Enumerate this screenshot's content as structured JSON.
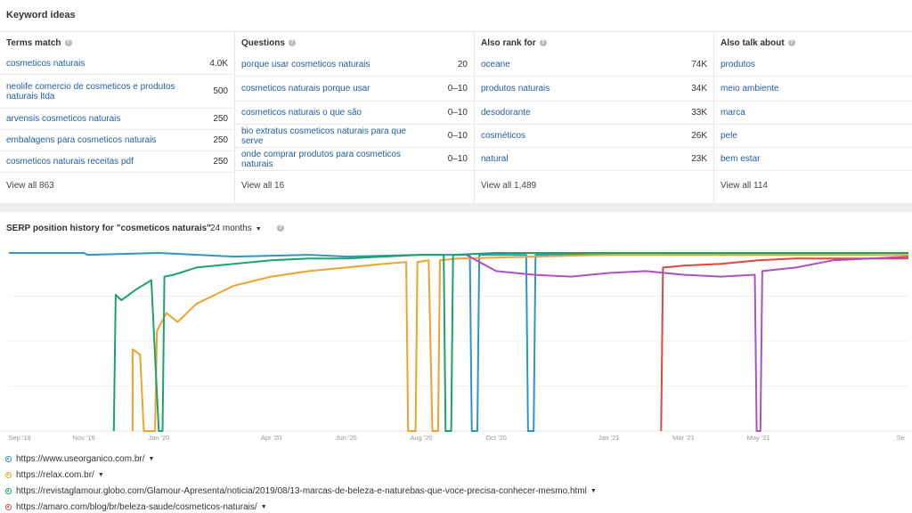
{
  "keyword_ideas": {
    "title": "Keyword ideas",
    "columns": [
      {
        "header": "Terms match",
        "rows": [
          {
            "keyword": "cosmeticos naturais",
            "value": "4.0K"
          },
          {
            "keyword": "neolife comercio de cosmeticos e produtos naturais ltda",
            "value": "500"
          },
          {
            "keyword": "arvensis cosmeticos naturais",
            "value": "250"
          },
          {
            "keyword": "embalagens para cosmeticos naturais",
            "value": "250"
          },
          {
            "keyword": "cosmeticos naturais receitas pdf",
            "value": "250"
          }
        ],
        "view_all": "View all 863"
      },
      {
        "header": "Questions",
        "rows": [
          {
            "keyword": "porque usar cosmeticos naturais",
            "value": "20"
          },
          {
            "keyword": "cosmeticos naturais porque usar",
            "value": "0–10"
          },
          {
            "keyword": "cosmeticos naturais o que são",
            "value": "0–10"
          },
          {
            "keyword": "bio extratus cosmeticos naturais para que serve",
            "value": "0–10"
          },
          {
            "keyword": "onde comprar produtos para cosmeticos naturais",
            "value": "0–10"
          }
        ],
        "view_all": "View all 16"
      },
      {
        "header": "Also rank for",
        "rows": [
          {
            "keyword": "oceane",
            "value": "74K"
          },
          {
            "keyword": "produtos naturais",
            "value": "34K"
          },
          {
            "keyword": "desodorante",
            "value": "33K"
          },
          {
            "keyword": "cosméticos",
            "value": "26K"
          },
          {
            "keyword": "natural",
            "value": "23K"
          }
        ],
        "view_all": "View all 1,489"
      },
      {
        "header": "Also talk about",
        "rows": [
          {
            "keyword": "produtos",
            "value": ""
          },
          {
            "keyword": "meio ambiente",
            "value": ""
          },
          {
            "keyword": "marca",
            "value": ""
          },
          {
            "keyword": "pele",
            "value": ""
          },
          {
            "keyword": "bem estar",
            "value": ""
          }
        ],
        "view_all": "View all 114"
      }
    ]
  },
  "serp": {
    "title": "SERP position history for \"cosmeticos naturais\"",
    "period": "24 months",
    "help_icon": "question-circle-icon",
    "legend": [
      {
        "url": "https://www.useorganico.com.br/",
        "color": "#2f95c8"
      },
      {
        "url": "https://relax.com.br/",
        "color": "#f0a22e"
      },
      {
        "url": "https://revistaglamour.globo.com/Glamour-Apresenta/noticia/2019/08/13-marcas-de-beleza-e-naturebas-que-voce-precisa-conhecer-mesmo.html",
        "color": "#1aa36a"
      },
      {
        "url": "https://amaro.com/blog/br/beleza-saude/cosmeticos-naturais/",
        "color": "#e0463c"
      }
    ]
  },
  "chart_data": {
    "type": "line",
    "x_ticks": [
      "Sep '19",
      "Nov '19",
      "Jan '20",
      "Apr '20",
      "Jun '20",
      "Aug '20",
      "Oct '20",
      "Jan '21",
      "Mar '21",
      "May '21",
      "Se"
    ],
    "x_range_months": [
      0,
      24
    ],
    "y_range_position": [
      1,
      100
    ],
    "series": [
      {
        "name": "https://www.useorganico.com.br/",
        "color": "#2f95c8",
        "points": [
          [
            0,
            2
          ],
          [
            2,
            2
          ],
          [
            2.1,
            3
          ],
          [
            4,
            2
          ],
          [
            6,
            4
          ],
          [
            8,
            3
          ],
          [
            9,
            4
          ],
          [
            11,
            3
          ],
          [
            12.3,
            3
          ],
          [
            12.35,
            100
          ],
          [
            12.5,
            100
          ],
          [
            12.55,
            3
          ],
          [
            13.8,
            3
          ],
          [
            13.85,
            100
          ],
          [
            14,
            100
          ],
          [
            14.05,
            3
          ],
          [
            17,
            2
          ],
          [
            19,
            3
          ],
          [
            23,
            2
          ],
          [
            24,
            2
          ]
        ]
      },
      {
        "name": "https://relax.com.br/",
        "color": "#f0a22e",
        "points": [
          [
            3.3,
            100
          ],
          [
            3.3,
            55
          ],
          [
            3.5,
            58
          ],
          [
            3.6,
            100
          ],
          [
            3.9,
            100
          ],
          [
            3.95,
            45
          ],
          [
            4.2,
            35
          ],
          [
            4.5,
            40
          ],
          [
            5,
            30
          ],
          [
            5.5,
            25
          ],
          [
            6,
            20
          ],
          [
            7,
            15
          ],
          [
            8,
            12
          ],
          [
            9,
            10
          ],
          [
            10,
            8
          ],
          [
            10.6,
            7
          ],
          [
            10.65,
            100
          ],
          [
            10.85,
            100
          ],
          [
            10.9,
            7
          ],
          [
            11.2,
            6
          ],
          [
            11.3,
            100
          ],
          [
            11.45,
            100
          ],
          [
            11.5,
            6
          ],
          [
            12,
            5
          ],
          [
            14,
            4
          ],
          [
            16,
            3
          ],
          [
            18,
            3
          ],
          [
            20,
            3
          ],
          [
            22,
            3
          ],
          [
            24,
            3
          ]
        ]
      },
      {
        "name": "https://revistaglamour.globo.com/",
        "color": "#1aa36a",
        "points": [
          [
            2.8,
            100
          ],
          [
            2.85,
            25
          ],
          [
            3,
            28
          ],
          [
            3.4,
            22
          ],
          [
            3.8,
            17
          ],
          [
            4,
            100
          ],
          [
            4.1,
            100
          ],
          [
            4.15,
            15
          ],
          [
            4.4,
            14
          ],
          [
            5,
            10
          ],
          [
            6,
            8
          ],
          [
            7,
            6
          ],
          [
            8,
            5
          ],
          [
            9,
            5
          ],
          [
            10,
            4
          ],
          [
            11,
            3
          ],
          [
            11.6,
            3
          ],
          [
            11.65,
            100
          ],
          [
            11.8,
            100
          ],
          [
            11.85,
            3
          ],
          [
            13,
            2
          ],
          [
            15,
            2
          ],
          [
            17,
            2
          ],
          [
            20,
            2
          ],
          [
            24,
            2
          ]
        ]
      },
      {
        "name": "https://amaro.com/blog/br/beleza-saude/cosmeticos-naturais/",
        "color": "#e0463c",
        "points": [
          [
            17.4,
            100
          ],
          [
            17.45,
            10
          ],
          [
            18,
            9
          ],
          [
            19,
            8
          ],
          [
            20,
            6
          ],
          [
            21,
            5
          ],
          [
            22,
            5
          ],
          [
            24,
            5
          ]
        ]
      },
      {
        "name": "",
        "color": "#b04fc1",
        "points": [
          [
            12.2,
            3
          ],
          [
            13,
            12
          ],
          [
            14,
            14
          ],
          [
            15,
            15
          ],
          [
            16,
            13
          ],
          [
            17,
            12
          ],
          [
            18,
            14
          ],
          [
            19,
            15
          ],
          [
            19.9,
            14
          ],
          [
            19.95,
            100
          ],
          [
            20.05,
            100
          ],
          [
            20.1,
            12
          ],
          [
            21,
            10
          ],
          [
            22,
            6
          ],
          [
            23,
            5
          ],
          [
            24,
            4
          ]
        ]
      }
    ]
  }
}
